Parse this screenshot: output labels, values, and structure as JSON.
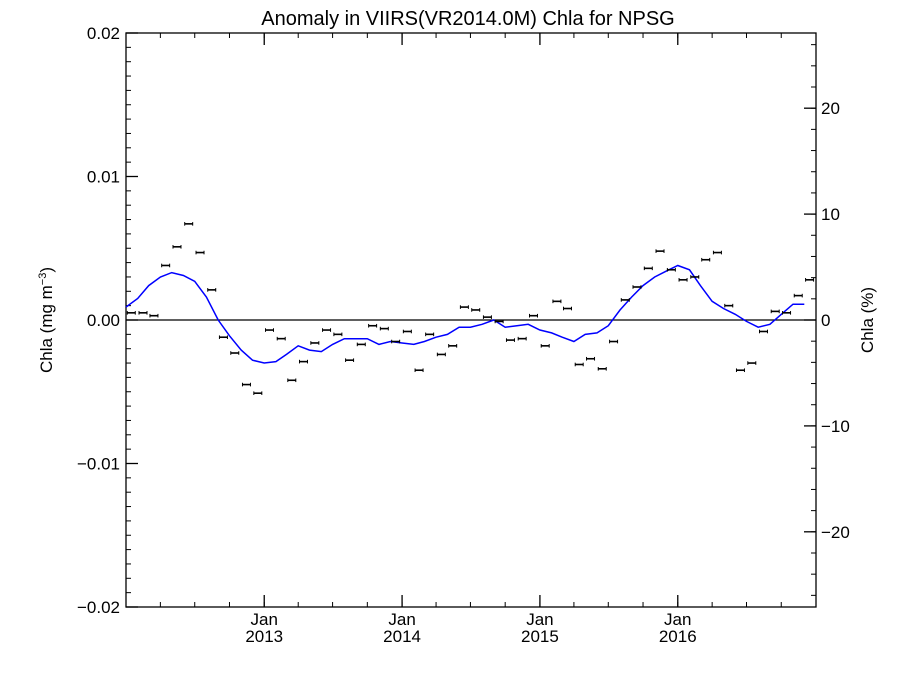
{
  "chart_data": {
    "type": "scatter",
    "title": "Anomaly in VIIRS(VR2014.0M) Chla for NPSG",
    "ylabel_left": "Chla (mg m",
    "ylabel_left_sup": "−3",
    "ylabel_left_close": ")",
    "ylabel_right": "Chla (%)",
    "xlim": [
      "2012-01-01",
      "2017-01-01"
    ],
    "ylim": [
      -0.02,
      0.02
    ],
    "ylim_right": [
      -27.1,
      27.1
    ],
    "x_ticks": [
      {
        "date": "2013-01-01",
        "top": "Jan",
        "bottom": "2013"
      },
      {
        "date": "2014-01-01",
        "top": "Jan",
        "bottom": "2014"
      },
      {
        "date": "2015-01-01",
        "top": "Jan",
        "bottom": "2015"
      },
      {
        "date": "2016-01-01",
        "top": "Jan",
        "bottom": "2016"
      }
    ],
    "y_ticks_left": [
      {
        "value": 0.02,
        "label": "0.02"
      },
      {
        "value": 0.01,
        "label": "0.01"
      },
      {
        "value": 0.0,
        "label": "0.00"
      },
      {
        "value": -0.01,
        "label": "−0.01"
      },
      {
        "value": -0.02,
        "label": "−0.02"
      }
    ],
    "y_ticks_right": [
      {
        "value": 20,
        "label": "20"
      },
      {
        "value": 10,
        "label": "10"
      },
      {
        "value": 0,
        "label": "0"
      },
      {
        "value": -10,
        "label": "−10"
      },
      {
        "value": -20,
        "label": "−20"
      }
    ],
    "zero_line": 0.0,
    "grid": false,
    "series": [
      {
        "type": "scatter_errorbar",
        "color": "#000000",
        "points": [
          {
            "x": "2012-01",
            "y": 0.0005
          },
          {
            "x": "2012-02",
            "y": 0.0005
          },
          {
            "x": "2012-03",
            "y": 0.0003
          },
          {
            "x": "2012-04",
            "y": 0.0038
          },
          {
            "x": "2012-05",
            "y": 0.0051
          },
          {
            "x": "2012-06",
            "y": 0.0067
          },
          {
            "x": "2012-07",
            "y": 0.0047
          },
          {
            "x": "2012-08",
            "y": 0.0021
          },
          {
            "x": "2012-09",
            "y": -0.0012
          },
          {
            "x": "2012-10",
            "y": -0.0023
          },
          {
            "x": "2012-11",
            "y": -0.0045
          },
          {
            "x": "2012-12",
            "y": -0.0051
          },
          {
            "x": "2013-01",
            "y": -0.0007
          },
          {
            "x": "2013-02",
            "y": -0.0013
          },
          {
            "x": "2013-03",
            "y": -0.0042
          },
          {
            "x": "2013-04",
            "y": -0.0029
          },
          {
            "x": "2013-05",
            "y": -0.0016
          },
          {
            "x": "2013-06",
            "y": -0.0007
          },
          {
            "x": "2013-07",
            "y": -0.001
          },
          {
            "x": "2013-08",
            "y": -0.0028
          },
          {
            "x": "2013-09",
            "y": -0.0017
          },
          {
            "x": "2013-10",
            "y": -0.0004
          },
          {
            "x": "2013-11",
            "y": -0.0006
          },
          {
            "x": "2013-12",
            "y": -0.0015
          },
          {
            "x": "2014-01",
            "y": -0.0008
          },
          {
            "x": "2014-02",
            "y": -0.0035
          },
          {
            "x": "2014-03",
            "y": -0.001
          },
          {
            "x": "2014-04",
            "y": -0.0024
          },
          {
            "x": "2014-05",
            "y": -0.0018
          },
          {
            "x": "2014-06",
            "y": 0.0009
          },
          {
            "x": "2014-07",
            "y": 0.0007
          },
          {
            "x": "2014-08",
            "y": 0.0002
          },
          {
            "x": "2014-09",
            "y": -0.0001
          },
          {
            "x": "2014-10",
            "y": -0.0014
          },
          {
            "x": "2014-11",
            "y": -0.0013
          },
          {
            "x": "2014-12",
            "y": 0.0003
          },
          {
            "x": "2015-01",
            "y": -0.0018
          },
          {
            "x": "2015-02",
            "y": 0.0013
          },
          {
            "x": "2015-03",
            "y": 0.0008
          },
          {
            "x": "2015-04",
            "y": -0.0031
          },
          {
            "x": "2015-05",
            "y": -0.0027
          },
          {
            "x": "2015-06",
            "y": -0.0034
          },
          {
            "x": "2015-07",
            "y": -0.0015
          },
          {
            "x": "2015-08",
            "y": 0.0014
          },
          {
            "x": "2015-09",
            "y": 0.0023
          },
          {
            "x": "2015-10",
            "y": 0.0036
          },
          {
            "x": "2015-11",
            "y": 0.0048
          },
          {
            "x": "2015-12",
            "y": 0.0035
          },
          {
            "x": "2016-01",
            "y": 0.0028
          },
          {
            "x": "2016-02",
            "y": 0.003
          },
          {
            "x": "2016-03",
            "y": 0.0042
          },
          {
            "x": "2016-04",
            "y": 0.0047
          },
          {
            "x": "2016-05",
            "y": 0.001
          },
          {
            "x": "2016-06",
            "y": -0.0035
          },
          {
            "x": "2016-07",
            "y": -0.003
          },
          {
            "x": "2016-08",
            "y": -0.0008
          },
          {
            "x": "2016-09",
            "y": 0.0006
          },
          {
            "x": "2016-10",
            "y": 0.0005
          },
          {
            "x": "2016-11",
            "y": 0.0017
          },
          {
            "x": "2016-12",
            "y": 0.0028
          }
        ]
      },
      {
        "type": "line",
        "color": "#0000ff",
        "points": [
          {
            "x": "2012-01-01",
            "y": 0.0009
          },
          {
            "x": "2012-02-01",
            "y": 0.0015
          },
          {
            "x": "2012-03-01",
            "y": 0.0024
          },
          {
            "x": "2012-04-01",
            "y": 0.003
          },
          {
            "x": "2012-05-01",
            "y": 0.0033
          },
          {
            "x": "2012-06-01",
            "y": 0.0031
          },
          {
            "x": "2012-07-01",
            "y": 0.0027
          },
          {
            "x": "2012-08-01",
            "y": 0.0016
          },
          {
            "x": "2012-09-01",
            "y": 0.0
          },
          {
            "x": "2012-10-01",
            "y": -0.0011
          },
          {
            "x": "2012-11-01",
            "y": -0.0021
          },
          {
            "x": "2012-12-01",
            "y": -0.0028
          },
          {
            "x": "2013-01-01",
            "y": -0.003
          },
          {
            "x": "2013-02-01",
            "y": -0.0029
          },
          {
            "x": "2013-03-01",
            "y": -0.0024
          },
          {
            "x": "2013-04-01",
            "y": -0.0018
          },
          {
            "x": "2013-05-01",
            "y": -0.0021
          },
          {
            "x": "2013-06-01",
            "y": -0.0022
          },
          {
            "x": "2013-07-01",
            "y": -0.0017
          },
          {
            "x": "2013-08-01",
            "y": -0.0013
          },
          {
            "x": "2013-09-01",
            "y": -0.0013
          },
          {
            "x": "2013-10-01",
            "y": -0.0013
          },
          {
            "x": "2013-11-01",
            "y": -0.0017
          },
          {
            "x": "2013-12-01",
            "y": -0.0015
          },
          {
            "x": "2014-01-01",
            "y": -0.0016
          },
          {
            "x": "2014-02-01",
            "y": -0.0017
          },
          {
            "x": "2014-03-01",
            "y": -0.0015
          },
          {
            "x": "2014-04-01",
            "y": -0.0012
          },
          {
            "x": "2014-05-01",
            "y": -0.001
          },
          {
            "x": "2014-06-01",
            "y": -0.0005
          },
          {
            "x": "2014-07-01",
            "y": -0.0005
          },
          {
            "x": "2014-08-01",
            "y": -0.0003
          },
          {
            "x": "2014-09-01",
            "y": 0.0
          },
          {
            "x": "2014-10-01",
            "y": -0.0005
          },
          {
            "x": "2014-11-01",
            "y": -0.0004
          },
          {
            "x": "2014-12-01",
            "y": -0.0003
          },
          {
            "x": "2015-01-01",
            "y": -0.0007
          },
          {
            "x": "2015-02-01",
            "y": -0.0009
          },
          {
            "x": "2015-03-01",
            "y": -0.0012
          },
          {
            "x": "2015-04-01",
            "y": -0.0015
          },
          {
            "x": "2015-05-01",
            "y": -0.001
          },
          {
            "x": "2015-06-01",
            "y": -0.0009
          },
          {
            "x": "2015-07-01",
            "y": -0.0004
          },
          {
            "x": "2015-08-01",
            "y": 0.0007
          },
          {
            "x": "2015-09-01",
            "y": 0.0016
          },
          {
            "x": "2015-10-01",
            "y": 0.0024
          },
          {
            "x": "2015-11-01",
            "y": 0.003
          },
          {
            "x": "2015-12-01",
            "y": 0.0034
          },
          {
            "x": "2016-01-01",
            "y": 0.0038
          },
          {
            "x": "2016-02-01",
            "y": 0.0035
          },
          {
            "x": "2016-03-01",
            "y": 0.0024
          },
          {
            "x": "2016-04-01",
            "y": 0.0013
          },
          {
            "x": "2016-05-01",
            "y": 0.0008
          },
          {
            "x": "2016-06-01",
            "y": 0.0004
          },
          {
            "x": "2016-07-01",
            "y": -0.0001
          },
          {
            "x": "2016-08-01",
            "y": -0.0005
          },
          {
            "x": "2016-09-01",
            "y": -0.0003
          },
          {
            "x": "2016-10-01",
            "y": 0.0004
          },
          {
            "x": "2016-11-01",
            "y": 0.0011
          },
          {
            "x": "2016-12-01",
            "y": 0.0011
          }
        ]
      }
    ]
  }
}
